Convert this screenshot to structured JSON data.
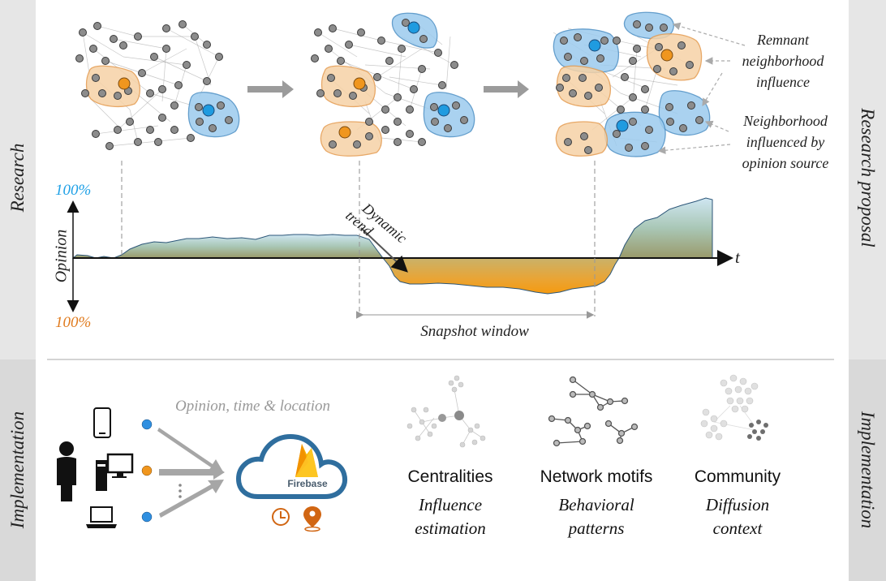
{
  "side_labels": {
    "left_top": "Research",
    "left_bottom": "Implementation",
    "right_top": "Research proposal",
    "right_bottom": "Implementation"
  },
  "annotations": {
    "remnant": [
      "Remnant",
      "neighborhood",
      "influence"
    ],
    "influenced": [
      "Neighborhood",
      "influenced by",
      "opinion source"
    ]
  },
  "plot": {
    "y_axis_label": "Opinion",
    "top_percent": "100%",
    "bottom_percent": "100%",
    "t_label": "t",
    "dynamic_trend": [
      "Dynamic",
      "trend"
    ],
    "snapshot_window": "Snapshot window"
  },
  "implementation": {
    "flow_label": "Opinion, time & location",
    "firebase_label": "Firebase",
    "methods": [
      {
        "title": "Centralities",
        "subtitle": [
          "Influence",
          "estimation"
        ]
      },
      {
        "title": "Network motifs",
        "subtitle": [
          "Behavioral",
          "patterns"
        ]
      },
      {
        "title": "Community",
        "subtitle": [
          "Diffusion",
          "context"
        ]
      }
    ]
  },
  "colors": {
    "positive": "#1ea0e6",
    "negative": "#e07b1e",
    "side_bar_top": "#e6e6e6",
    "side_bar_bottom": "#d9d9d9"
  }
}
